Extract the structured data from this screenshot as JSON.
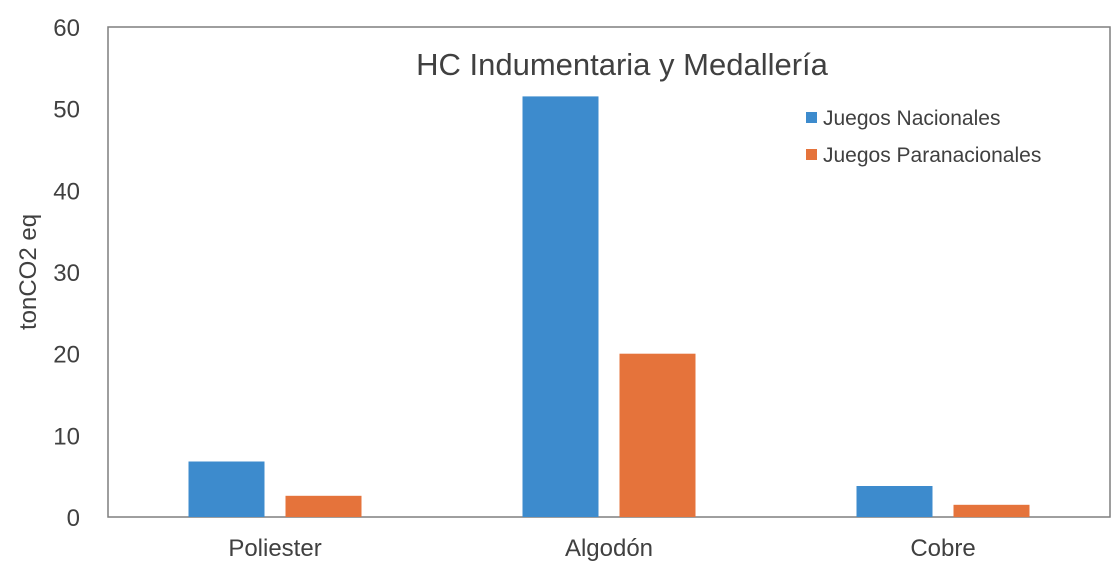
{
  "chart_data": {
    "type": "bar",
    "title": "HC Indumentaria  y Medallería",
    "xlabel": "",
    "ylabel": "tonCO2 eq",
    "categories": [
      "Poliester",
      "Algodón",
      "Cobre"
    ],
    "series": [
      {
        "name": "Juegos Nacionales",
        "values": [
          6.8,
          51.5,
          3.8
        ],
        "color": "#3d8bcd"
      },
      {
        "name": "Juegos Paranacionales",
        "values": [
          2.6,
          20.0,
          1.5
        ],
        "color": "#e5733b"
      }
    ],
    "ylim": [
      0,
      60
    ],
    "yticks": [
      0,
      10,
      20,
      30,
      40,
      50,
      60
    ],
    "grid": false,
    "legend_position": "top-right"
  }
}
